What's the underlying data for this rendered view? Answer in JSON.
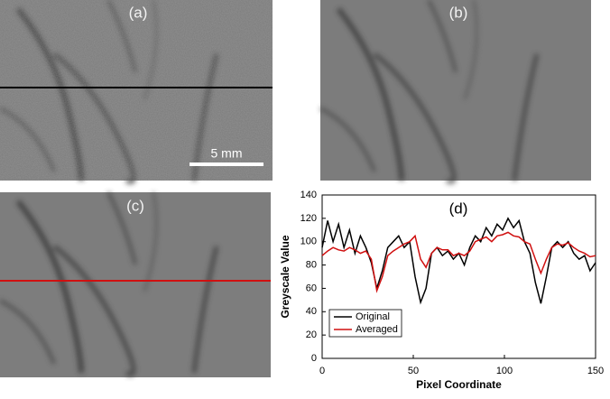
{
  "panels": [
    {
      "label": "(a)",
      "scale_label": "5 mm"
    },
    {
      "label": "(b)"
    },
    {
      "label": "(c)"
    }
  ],
  "chart_data": {
    "type": "line",
    "title": "(d)",
    "x_label": "Pixel Coordinate",
    "y_label": "Greyscale Value",
    "x": [
      0,
      3,
      6,
      9,
      12,
      15,
      18,
      21,
      24,
      27,
      30,
      33,
      36,
      39,
      42,
      45,
      48,
      51,
      54,
      57,
      60,
      63,
      66,
      69,
      72,
      75,
      78,
      81,
      84,
      87,
      90,
      93,
      96,
      99,
      102,
      105,
      108,
      111,
      114,
      117,
      120,
      123,
      126,
      129,
      132,
      135,
      138,
      141,
      144,
      147,
      150
    ],
    "series": [
      {
        "name": "Original",
        "color": "#000000",
        "values": [
          95,
          118,
          100,
          115,
          95,
          110,
          90,
          105,
          95,
          82,
          60,
          75,
          95,
          100,
          105,
          95,
          100,
          70,
          48,
          60,
          90,
          95,
          88,
          92,
          85,
          90,
          80,
          95,
          105,
          100,
          112,
          105,
          115,
          110,
          120,
          112,
          118,
          100,
          90,
          65,
          47,
          70,
          95,
          100,
          95,
          100,
          90,
          85,
          88,
          75,
          82
        ]
      },
      {
        "name": "Averaged",
        "color": "#d01010",
        "values": [
          88,
          92,
          95,
          93,
          92,
          95,
          93,
          90,
          92,
          85,
          58,
          70,
          88,
          92,
          95,
          98,
          100,
          105,
          85,
          78,
          90,
          95,
          93,
          93,
          88,
          90,
          88,
          92,
          100,
          102,
          104,
          100,
          105,
          106,
          108,
          105,
          104,
          100,
          98,
          85,
          73,
          85,
          95,
          98,
          97,
          99,
          95,
          92,
          90,
          87,
          88
        ]
      }
    ],
    "xlim": [
      0,
      150
    ],
    "ylim": [
      0,
      140
    ],
    "xticks": [
      0,
      50,
      100,
      150
    ],
    "yticks": [
      0,
      20,
      40,
      60,
      80,
      100,
      120,
      140
    ],
    "legend": "lower-left"
  }
}
